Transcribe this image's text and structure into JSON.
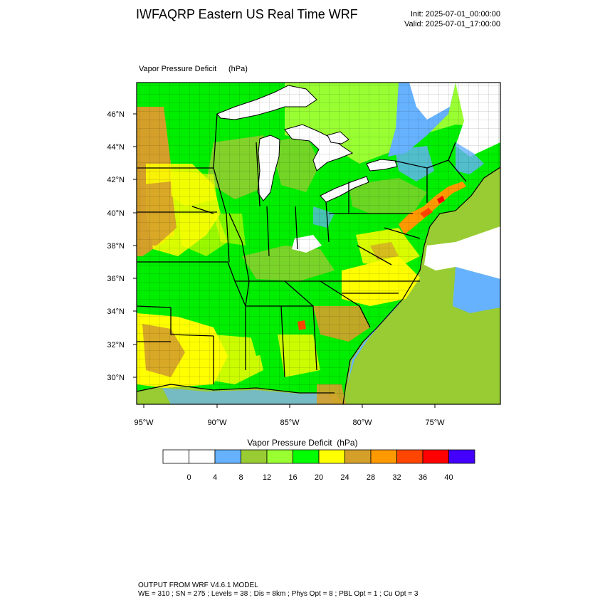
{
  "header": {
    "title": "IWFAQRP Eastern US Real Time WRF",
    "init": "Init: 2025-07-01_00:00:00",
    "valid": "Valid: 2025-07-01_17:00:00"
  },
  "field": {
    "name": "Vapor Pressure Deficit",
    "units": "(hPa)"
  },
  "map": {
    "lat_labels": [
      "46°N",
      "44°N",
      "42°N",
      "40°N",
      "38°N",
      "36°N",
      "34°N",
      "32°N",
      "30°N"
    ],
    "lon_labels": [
      "95°W",
      "90°W",
      "85°W",
      "80°W",
      "75°W"
    ],
    "colors": {
      "water_high_vpd": "#ffffff",
      "lt8": "#66b2ff",
      "lt12": "#99cc33",
      "lt16": "#99ff33",
      "lt20": "#00ff00",
      "lt24": "#ffff00",
      "lt28": "#d4a02a",
      "lt32": "#ff9900",
      "lt36": "#ff4500",
      "lt40": "#ff0000",
      "ge40": "#4400ff"
    }
  },
  "colorbar": {
    "title": "Vapor Pressure Deficit",
    "units": "(hPa)",
    "colors": [
      "#ffffff",
      "#ffffff",
      "#66b2ff",
      "#99cc33",
      "#99ff33",
      "#00ff00",
      "#ffff00",
      "#d4a02a",
      "#ff9900",
      "#ff4500",
      "#ff0000",
      "#4400ff"
    ],
    "labels": [
      "0",
      "4",
      "8",
      "12",
      "16",
      "20",
      "24",
      "28",
      "32",
      "36",
      "40"
    ]
  },
  "footer": {
    "line1": "OUTPUT FROM WRF V4.6.1 MODEL",
    "line2": "WE = 310 ; SN = 275 ; Levels = 38 ; Dis = 8km ; Phys Opt = 8 ; PBL Opt = 1 ; Cu Opt = 3"
  }
}
